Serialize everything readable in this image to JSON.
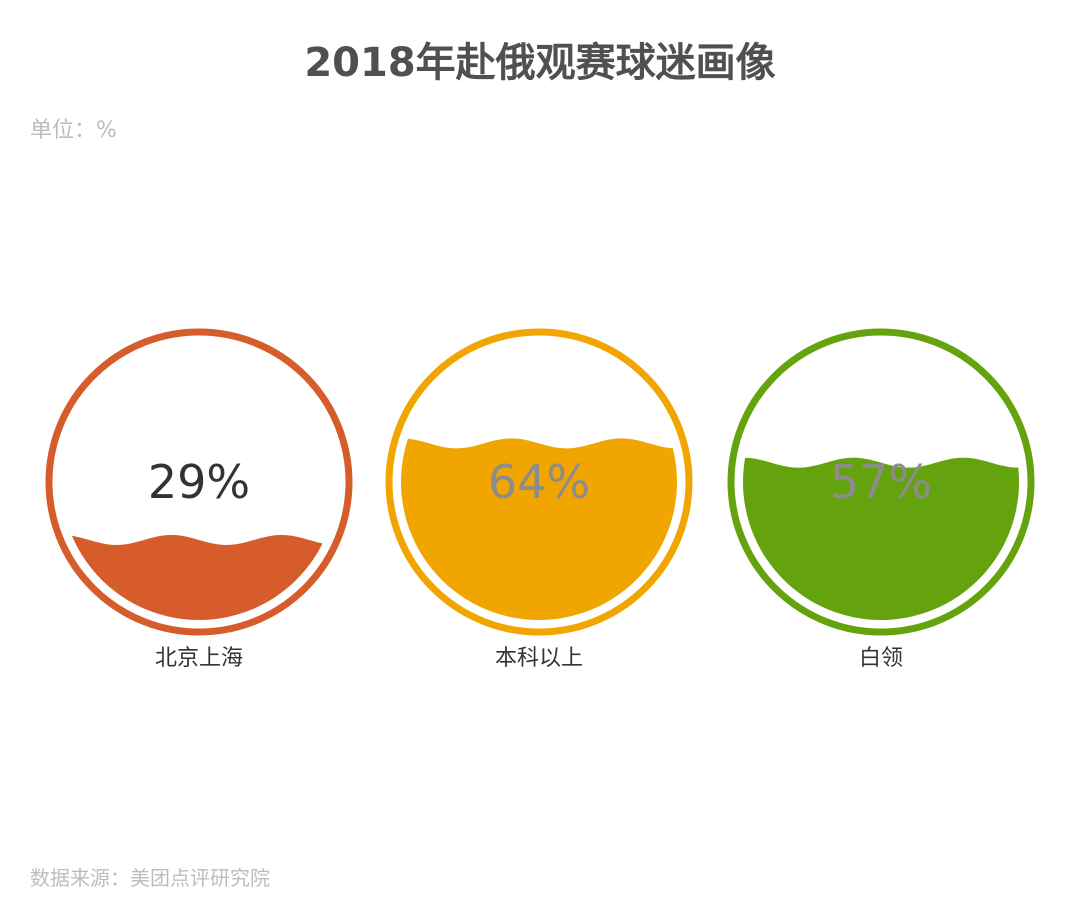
{
  "title": "2018年赴俄观赛球迷画像",
  "unit": "单位：%",
  "source": "数据来源：美团点评研究院",
  "chart_data": {
    "type": "liquid-fill",
    "title": "2018年赴俄观赛球迷画像",
    "unit": "%",
    "items": [
      {
        "label": "北京上海",
        "value": 29,
        "value_label": "29%",
        "color": "#d65c2b"
      },
      {
        "label": "本科以上",
        "value": 64,
        "value_label": "64%",
        "color": "#f0a500"
      },
      {
        "label": "白领",
        "value": 57,
        "value_label": "57%",
        "color": "#64a30d"
      }
    ]
  }
}
